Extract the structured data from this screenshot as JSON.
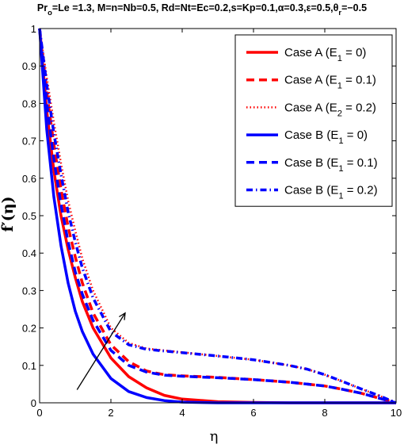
{
  "chart_data": {
    "type": "line",
    "title": {
      "parts": [
        {
          "t": "Pr"
        },
        {
          "t": "o",
          "sub": true
        },
        {
          "t": "=Le =1.3, M=n=Nb=0.5, Rd=Nt=Ec=0.2,s=Kp=0.1,"
        },
        {
          "t": "α"
        },
        {
          "t": "=0.3,"
        },
        {
          "t": "ε"
        },
        {
          "t": "=0.5,"
        },
        {
          "t": "θ"
        },
        {
          "t": "r",
          "sub": true
        },
        {
          "t": "=−0.5"
        }
      ]
    },
    "xlabel": "η",
    "ylabel": "f′(η)",
    "xlim": [
      0,
      10
    ],
    "ylim": [
      0,
      1
    ],
    "xticks": [
      0,
      2,
      4,
      6,
      8,
      10
    ],
    "yticks": [
      0,
      0.1,
      0.2,
      0.3,
      0.4,
      0.5,
      0.6,
      0.7,
      0.8,
      0.9,
      1
    ],
    "grid": false,
    "legend_position": "top-right",
    "series": [
      {
        "name": "Case A (E1 = 0)",
        "label_parts": [
          {
            "t": "Case A (E"
          },
          {
            "t": "1",
            "sub": true
          },
          {
            "t": " = 0)"
          }
        ],
        "color": "#ff0000",
        "style": "solid",
        "x": [
          0,
          0.2,
          0.4,
          0.6,
          0.8,
          1.0,
          1.2,
          1.5,
          2.0,
          2.5,
          3.0,
          3.5,
          4.0,
          5.0,
          6.0,
          7.0,
          8.0,
          9.0,
          10.0
        ],
        "y": [
          1.0,
          0.78,
          0.62,
          0.5,
          0.41,
          0.335,
          0.27,
          0.2,
          0.12,
          0.07,
          0.04,
          0.02,
          0.01,
          0.003,
          0.001,
          0.0,
          0.0,
          0.0,
          0.0
        ]
      },
      {
        "name": "Case A (E1 = 0.1)",
        "label_parts": [
          {
            "t": "Case A (E"
          },
          {
            "t": "1",
            "sub": true
          },
          {
            "t": " = 0.1)"
          }
        ],
        "color": "#ff0000",
        "style": "dashed",
        "x": [
          0,
          0.2,
          0.4,
          0.6,
          0.8,
          1.0,
          1.2,
          1.5,
          2.0,
          2.5,
          3.0,
          3.5,
          4.0,
          5.0,
          6.0,
          7.0,
          7.5,
          8.0,
          8.5,
          9.0,
          9.5,
          10.0
        ],
        "y": [
          1.0,
          0.83,
          0.69,
          0.57,
          0.47,
          0.39,
          0.32,
          0.24,
          0.155,
          0.11,
          0.085,
          0.075,
          0.072,
          0.068,
          0.062,
          0.055,
          0.05,
          0.045,
          0.036,
          0.026,
          0.013,
          0.0
        ]
      },
      {
        "name": "Case A (E2 = 0.2)",
        "label_parts": [
          {
            "t": "Case A (E"
          },
          {
            "t": "2",
            "sub": true
          },
          {
            "t": " = 0.2)"
          }
        ],
        "color": "#ff0000",
        "style": "dotted",
        "x": [
          0,
          0.2,
          0.4,
          0.6,
          0.8,
          1.0,
          1.2,
          1.5,
          2.0,
          2.5,
          3.0,
          4.0,
          5.0,
          6.0,
          7.0,
          7.5,
          8.0,
          8.5,
          9.0,
          9.5,
          10.0
        ],
        "y": [
          1.0,
          0.87,
          0.75,
          0.64,
          0.54,
          0.46,
          0.385,
          0.3,
          0.2,
          0.16,
          0.145,
          0.135,
          0.125,
          0.115,
          0.1,
          0.09,
          0.075,
          0.057,
          0.038,
          0.02,
          0.0
        ]
      },
      {
        "name": "Case B (E1 = 0)",
        "label_parts": [
          {
            "t": "Case B (E"
          },
          {
            "t": "1",
            "sub": true
          },
          {
            "t": " = 0)"
          }
        ],
        "color": "#0000ff",
        "style": "solid",
        "x": [
          0,
          0.2,
          0.4,
          0.6,
          0.8,
          1.0,
          1.2,
          1.5,
          2.0,
          2.5,
          3.0,
          3.5,
          4.0,
          5.0,
          6.0,
          7.0,
          8.0,
          9.0,
          10.0
        ],
        "y": [
          1.0,
          0.73,
          0.55,
          0.42,
          0.32,
          0.245,
          0.19,
          0.13,
          0.065,
          0.03,
          0.014,
          0.006,
          0.002,
          0.0,
          0.0,
          0.0,
          0.0,
          0.0,
          0.0
        ]
      },
      {
        "name": "Case B (E1 = 0.1)",
        "label_parts": [
          {
            "t": "Case B (E"
          },
          {
            "t": "1",
            "sub": true
          },
          {
            "t": " = 0.1)"
          }
        ],
        "color": "#0000ff",
        "style": "dashed",
        "x": [
          0,
          0.2,
          0.4,
          0.6,
          0.8,
          1.0,
          1.2,
          1.5,
          2.0,
          2.5,
          3.0,
          3.5,
          4.0,
          5.0,
          6.0,
          7.0,
          7.5,
          8.0,
          8.5,
          9.0,
          9.5,
          10.0
        ],
        "y": [
          1.0,
          0.8,
          0.65,
          0.53,
          0.43,
          0.35,
          0.29,
          0.22,
          0.14,
          0.1,
          0.082,
          0.074,
          0.071,
          0.067,
          0.062,
          0.055,
          0.05,
          0.045,
          0.036,
          0.026,
          0.013,
          0.0
        ]
      },
      {
        "name": "Case B (E1 = 0.2)",
        "label_parts": [
          {
            "t": "Case B (E"
          },
          {
            "t": "1",
            "sub": true
          },
          {
            "t": " = 0.2)"
          }
        ],
        "color": "#0000ff",
        "style": "dashdot",
        "x": [
          0,
          0.2,
          0.4,
          0.6,
          0.8,
          1.0,
          1.2,
          1.5,
          2.0,
          2.5,
          3.0,
          4.0,
          5.0,
          6.0,
          7.0,
          7.5,
          8.0,
          8.5,
          9.0,
          9.5,
          10.0
        ],
        "y": [
          1.0,
          0.85,
          0.72,
          0.61,
          0.51,
          0.43,
          0.36,
          0.28,
          0.19,
          0.155,
          0.143,
          0.134,
          0.125,
          0.115,
          0.1,
          0.09,
          0.075,
          0.057,
          0.038,
          0.02,
          0.0
        ]
      }
    ],
    "annotations": [
      {
        "type": "arrow",
        "from": [
          1.05,
          0.035
        ],
        "to": [
          2.4,
          0.24
        ],
        "color": "#000000"
      }
    ]
  }
}
